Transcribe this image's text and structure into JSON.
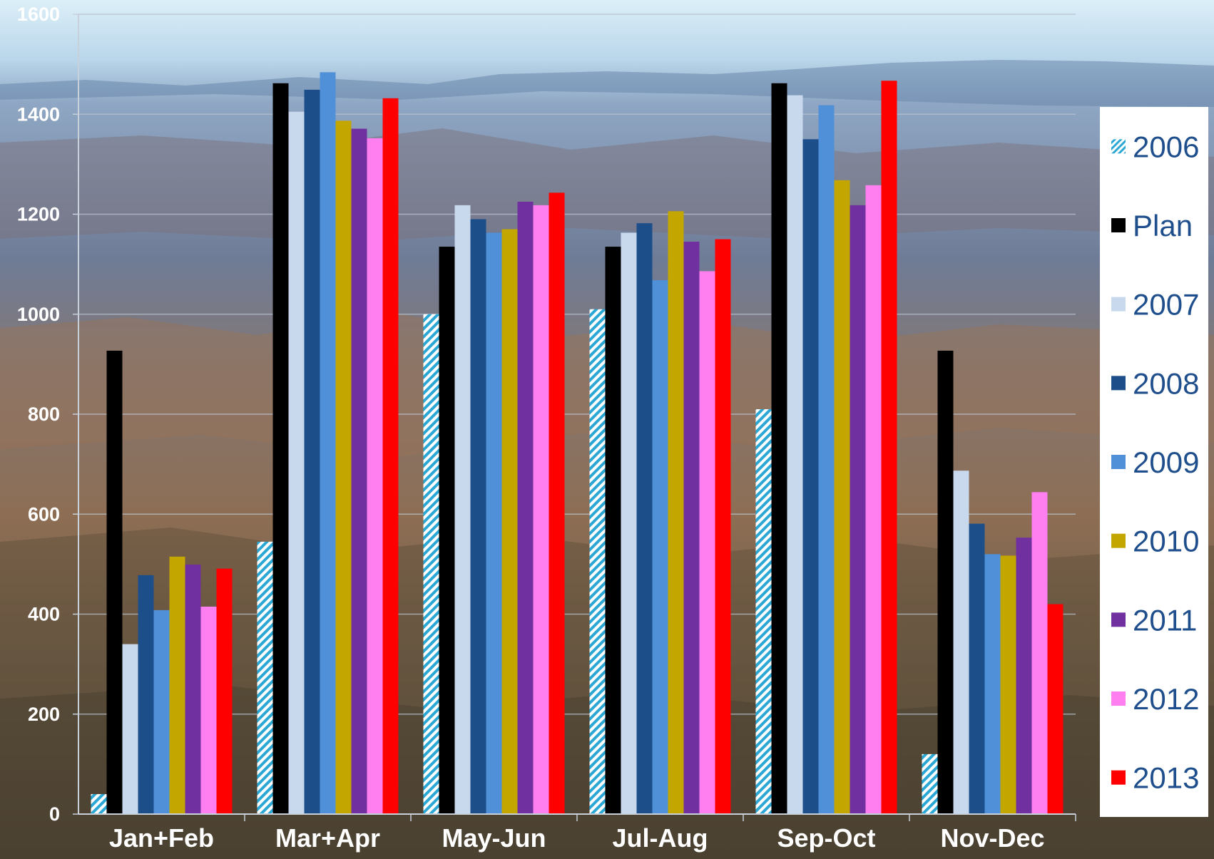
{
  "chart_data": {
    "type": "bar",
    "categories": [
      "Jan+Feb",
      "Mar+Apr",
      "May-Jun",
      "Jul-Aug",
      "Sep-Oct",
      "Nov-Dec"
    ],
    "series": [
      {
        "name": "2006",
        "color": "#2aa7d4",
        "pattern": "diagonal-hatch",
        "values": [
          40,
          545,
          1000,
          1010,
          810,
          120
        ]
      },
      {
        "name": "Plan",
        "color": "#000000",
        "values": [
          927,
          1462,
          1135,
          1135,
          1462,
          927
        ]
      },
      {
        "name": "2007",
        "color": "#c8d9ee",
        "values": [
          340,
          1405,
          1218,
          1163,
          1438,
          687
        ]
      },
      {
        "name": "2008",
        "color": "#1c4f8a",
        "values": [
          478,
          1449,
          1190,
          1182,
          1350,
          581
        ]
      },
      {
        "name": "2009",
        "color": "#4f90d9",
        "values": [
          408,
          1484,
          1163,
          1068,
          1418,
          520
        ]
      },
      {
        "name": "2010",
        "color": "#c3a700",
        "values": [
          515,
          1387,
          1170,
          1206,
          1268,
          517
        ]
      },
      {
        "name": "2011",
        "color": "#7030a0",
        "values": [
          499,
          1371,
          1225,
          1145,
          1218,
          553
        ]
      },
      {
        "name": "2012",
        "color": "#ff7ff0",
        "values": [
          415,
          1352,
          1218,
          1086,
          1258,
          644
        ]
      },
      {
        "name": "2013",
        "color": "#ff0000",
        "values": [
          491,
          1432,
          1243,
          1150,
          1467,
          420
        ]
      }
    ],
    "ylim": [
      0,
      1600
    ],
    "yticks": [
      "0",
      "200",
      "400",
      "600",
      "800",
      "1000",
      "1200",
      "1400",
      "1600"
    ],
    "grid": true,
    "legend_position": "right",
    "background": "canyon-landscape-photo"
  }
}
